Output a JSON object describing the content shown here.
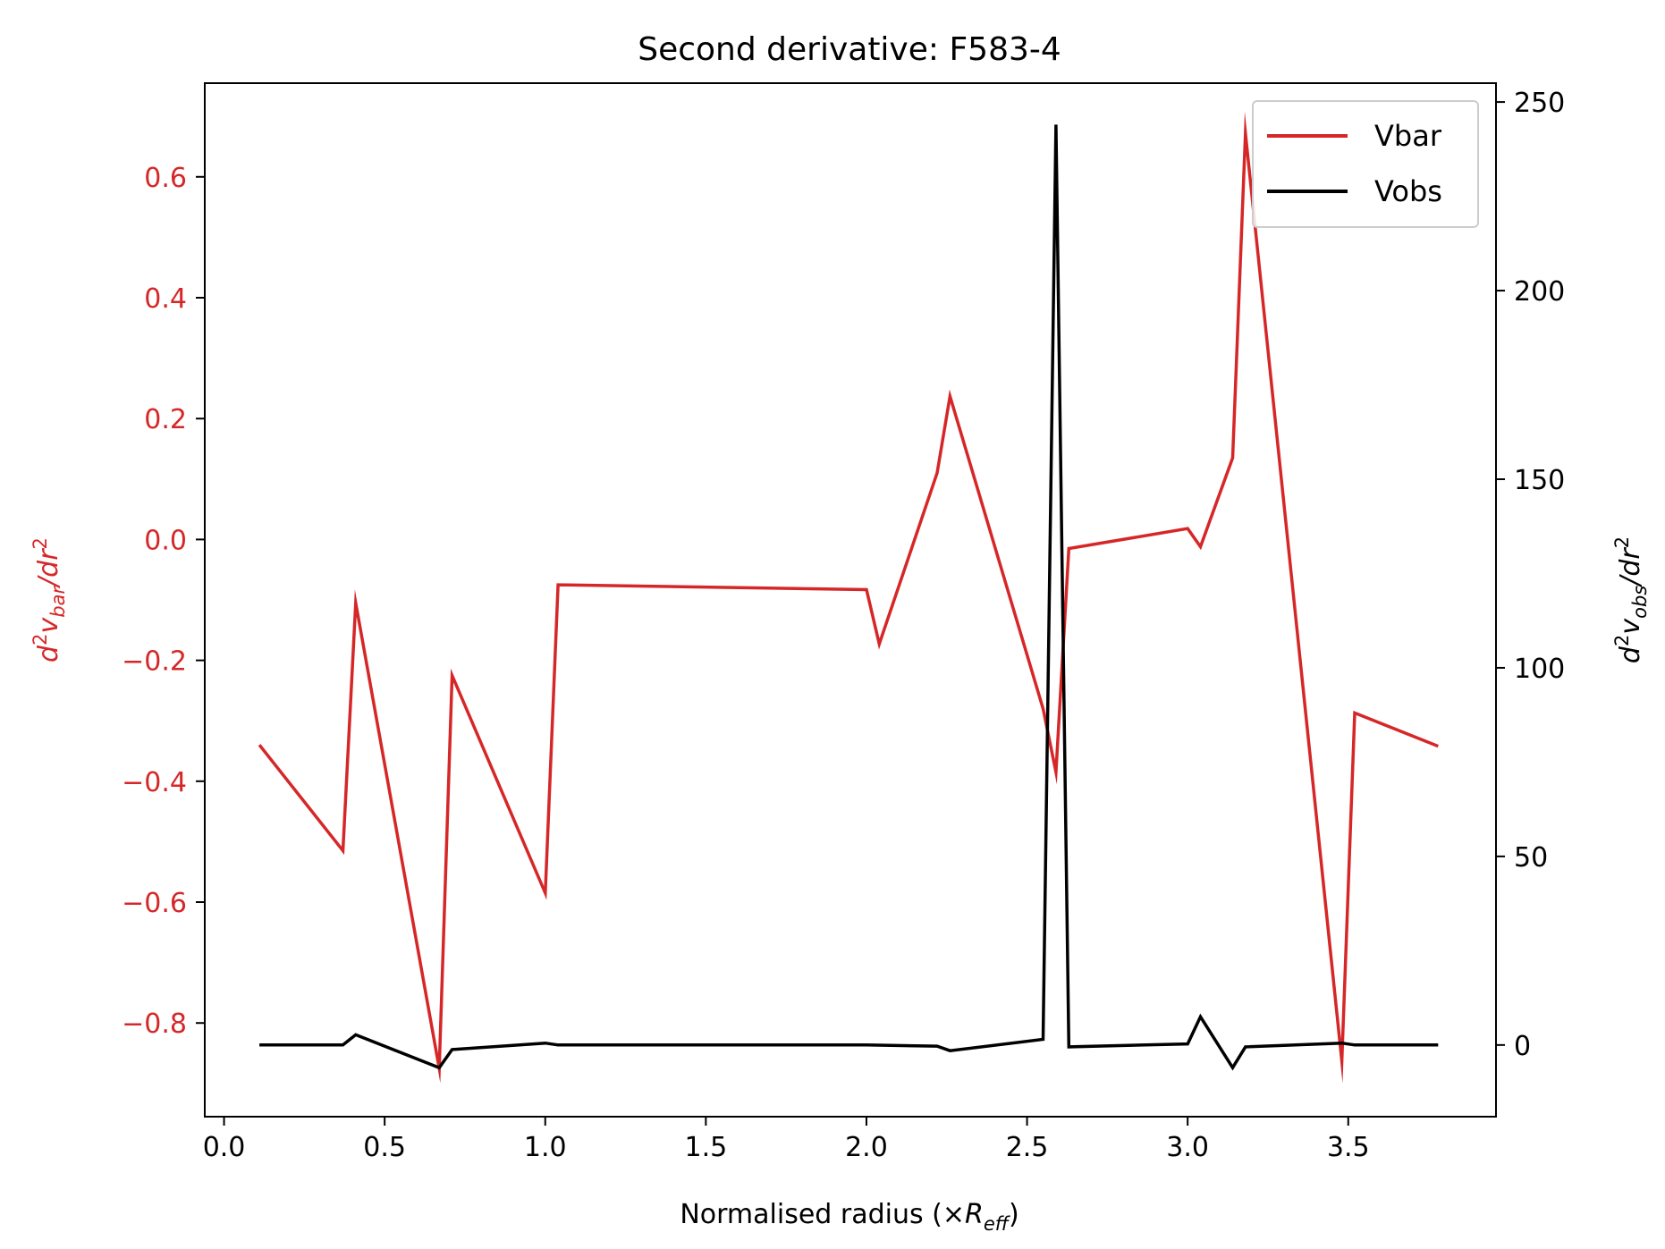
{
  "chart_data": {
    "type": "line",
    "title": "Second derivative: F583-4",
    "xlabel": {
      "main": "Normalised radius (×",
      "italic": "R",
      "sub": "eff",
      "close": ")"
    },
    "ylabel_left": "d²v_bar/dr²",
    "ylabel_right": "d²v_obs/dr²",
    "xlim": [
      -0.06,
      3.96
    ],
    "ylim_left": [
      -0.955,
      0.755
    ],
    "ylim_right": [
      -19,
      255
    ],
    "x_ticks": [
      0.0,
      0.5,
      1.0,
      1.5,
      2.0,
      2.5,
      3.0,
      3.5
    ],
    "x_tick_labels": [
      "0.0",
      "0.5",
      "1.0",
      "1.5",
      "2.0",
      "2.5",
      "3.0",
      "3.5"
    ],
    "left_ticks": [
      0.6,
      0.4,
      0.2,
      0.0,
      -0.2,
      -0.4,
      -0.6,
      -0.8
    ],
    "left_tick_labels": [
      "0.6",
      "0.4",
      "0.2",
      "0.0",
      "−0.2",
      "−0.4",
      "−0.6",
      "−0.8"
    ],
    "right_ticks": [
      250,
      200,
      150,
      100,
      50,
      0
    ],
    "right_tick_labels": [
      "250",
      "200",
      "150",
      "100",
      "50",
      "0"
    ],
    "legend_position": "top-right",
    "series": [
      {
        "name": "Vbar",
        "axis": "left",
        "color": "#d62728",
        "x": [
          0.11,
          0.37,
          0.41,
          0.67,
          0.71,
          1.0,
          1.04,
          2.0,
          2.04,
          2.22,
          2.26,
          2.55,
          2.59,
          2.63,
          3.0,
          3.04,
          3.14,
          3.18,
          3.48,
          3.52,
          3.78
        ],
        "y": [
          -0.34,
          -0.515,
          -0.105,
          -0.875,
          -0.225,
          -0.585,
          -0.075,
          -0.083,
          -0.173,
          0.11,
          0.237,
          -0.28,
          -0.385,
          -0.015,
          0.018,
          -0.012,
          0.135,
          0.672,
          -0.863,
          -0.287,
          -0.342
        ]
      },
      {
        "name": "Vobs",
        "axis": "right",
        "color": "#000000",
        "x": [
          0.11,
          0.37,
          0.41,
          0.67,
          0.71,
          1.0,
          1.04,
          2.0,
          2.22,
          2.26,
          2.55,
          2.59,
          2.63,
          3.0,
          3.04,
          3.14,
          3.18,
          3.48,
          3.52,
          3.78
        ],
        "y": [
          0,
          0,
          2.7,
          -6,
          -1.2,
          0.5,
          0,
          0,
          -0.3,
          -1.5,
          1.5,
          244,
          -0.5,
          0.3,
          7.5,
          -6,
          -0.5,
          0.5,
          0,
          0
        ]
      }
    ]
  }
}
